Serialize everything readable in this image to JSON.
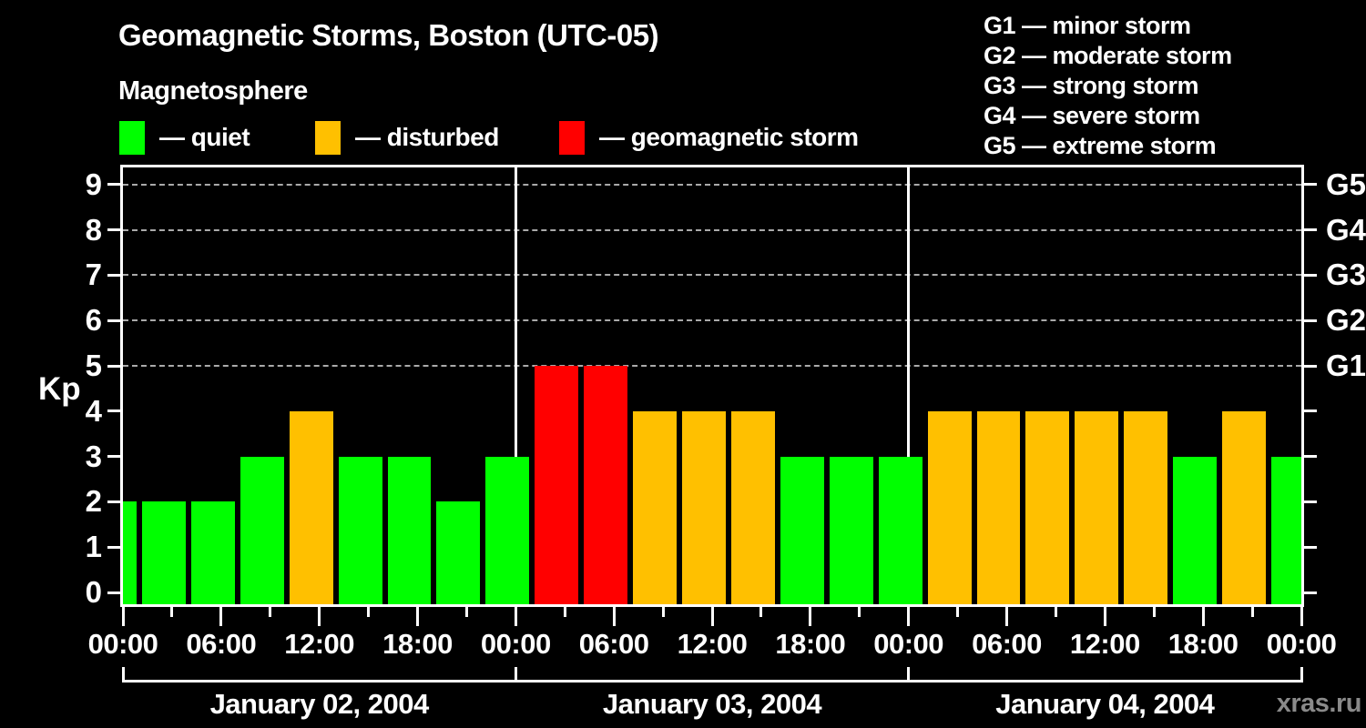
{
  "title": "Geomagnetic Storms, Boston (UTC-05)",
  "subtitle": "Magnetosphere",
  "legend": [
    {
      "status": "quiet",
      "label": "— quiet"
    },
    {
      "status": "disturbed",
      "label": "— disturbed"
    },
    {
      "status": "storm",
      "label": "— geomagnetic storm"
    }
  ],
  "g_scale_legend": [
    "G1 — minor storm",
    "G2 — moderate storm",
    "G3 — strong storm",
    "G4 — severe storm",
    "G5 — extreme storm"
  ],
  "watermark": "xras.ru",
  "chart_data": {
    "type": "bar",
    "title": "Geomagnetic Storms, Boston (UTC-05)",
    "subtitle": "Magnetosphere",
    "ylabel": "Kp",
    "ylim": [
      0,
      9
    ],
    "yticks": [
      0,
      1,
      2,
      3,
      4,
      5,
      6,
      7,
      8,
      9
    ],
    "grid": "dashed horizontal lines at Kp 5-9 only",
    "grid_dashed_at": [
      5,
      6,
      7,
      8,
      9
    ],
    "right_axis": [
      {
        "kp": 5,
        "label": "G1"
      },
      {
        "kp": 6,
        "label": "G2"
      },
      {
        "kp": 7,
        "label": "G3"
      },
      {
        "kp": 8,
        "label": "G4"
      },
      {
        "kp": 9,
        "label": "G5"
      }
    ],
    "x_unit": "hours, local time UTC-05, 3-hour Kp intervals",
    "x_range_hours": [
      0,
      72
    ],
    "x_ticks_every_hours": 3,
    "x_major_labels": [
      {
        "hour": 0,
        "label": "00:00"
      },
      {
        "hour": 6,
        "label": "06:00"
      },
      {
        "hour": 12,
        "label": "12:00"
      },
      {
        "hour": 18,
        "label": "18:00"
      },
      {
        "hour": 24,
        "label": "00:00"
      },
      {
        "hour": 30,
        "label": "06:00"
      },
      {
        "hour": 36,
        "label": "12:00"
      },
      {
        "hour": 42,
        "label": "18:00"
      },
      {
        "hour": 48,
        "label": "00:00"
      },
      {
        "hour": 54,
        "label": "06:00"
      },
      {
        "hour": 60,
        "label": "12:00"
      },
      {
        "hour": 66,
        "label": "18:00"
      },
      {
        "hour": 72,
        "label": "00:00"
      }
    ],
    "days": [
      {
        "label": "January 02, 2004",
        "start_hour": 0,
        "end_hour": 24
      },
      {
        "label": "January 03, 2004",
        "start_hour": 24,
        "end_hour": 48
      },
      {
        "label": "January 04, 2004",
        "start_hour": 48,
        "end_hour": 72
      }
    ],
    "colors": {
      "quiet": "#00ff00",
      "disturbed": "#ffc000",
      "storm": "#ff0000",
      "axis": "#ffffff",
      "grid": "#aaaaaa",
      "background": "#000000",
      "watermark": "#8a8a8a"
    },
    "legend_position": "top-left, with storm-scale legend top-right",
    "bars": [
      {
        "start_hour": 0,
        "end_hour": 1,
        "kp": 2,
        "status": "quiet"
      },
      {
        "start_hour": 1,
        "end_hour": 4,
        "kp": 2,
        "status": "quiet"
      },
      {
        "start_hour": 4,
        "end_hour": 7,
        "kp": 2,
        "status": "quiet"
      },
      {
        "start_hour": 7,
        "end_hour": 10,
        "kp": 3,
        "status": "quiet"
      },
      {
        "start_hour": 10,
        "end_hour": 13,
        "kp": 4,
        "status": "disturbed"
      },
      {
        "start_hour": 13,
        "end_hour": 16,
        "kp": 3,
        "status": "quiet"
      },
      {
        "start_hour": 16,
        "end_hour": 19,
        "kp": 3,
        "status": "quiet"
      },
      {
        "start_hour": 19,
        "end_hour": 22,
        "kp": 2,
        "status": "quiet"
      },
      {
        "start_hour": 22,
        "end_hour": 25,
        "kp": 3,
        "status": "quiet"
      },
      {
        "start_hour": 25,
        "end_hour": 28,
        "kp": 5,
        "status": "storm"
      },
      {
        "start_hour": 28,
        "end_hour": 31,
        "kp": 5,
        "status": "storm"
      },
      {
        "start_hour": 31,
        "end_hour": 34,
        "kp": 4,
        "status": "disturbed"
      },
      {
        "start_hour": 34,
        "end_hour": 37,
        "kp": 4,
        "status": "disturbed"
      },
      {
        "start_hour": 37,
        "end_hour": 40,
        "kp": 4,
        "status": "disturbed"
      },
      {
        "start_hour": 40,
        "end_hour": 43,
        "kp": 3,
        "status": "quiet"
      },
      {
        "start_hour": 43,
        "end_hour": 46,
        "kp": 3,
        "status": "quiet"
      },
      {
        "start_hour": 46,
        "end_hour": 49,
        "kp": 3,
        "status": "quiet"
      },
      {
        "start_hour": 49,
        "end_hour": 52,
        "kp": 4,
        "status": "disturbed"
      },
      {
        "start_hour": 52,
        "end_hour": 55,
        "kp": 4,
        "status": "disturbed"
      },
      {
        "start_hour": 55,
        "end_hour": 58,
        "kp": 4,
        "status": "disturbed"
      },
      {
        "start_hour": 58,
        "end_hour": 61,
        "kp": 4,
        "status": "disturbed"
      },
      {
        "start_hour": 61,
        "end_hour": 64,
        "kp": 4,
        "status": "disturbed"
      },
      {
        "start_hour": 64,
        "end_hour": 67,
        "kp": 3,
        "status": "quiet"
      },
      {
        "start_hour": 67,
        "end_hour": 70,
        "kp": 4,
        "status": "disturbed"
      },
      {
        "start_hour": 70,
        "end_hour": 72,
        "kp": 3,
        "status": "quiet"
      }
    ]
  }
}
